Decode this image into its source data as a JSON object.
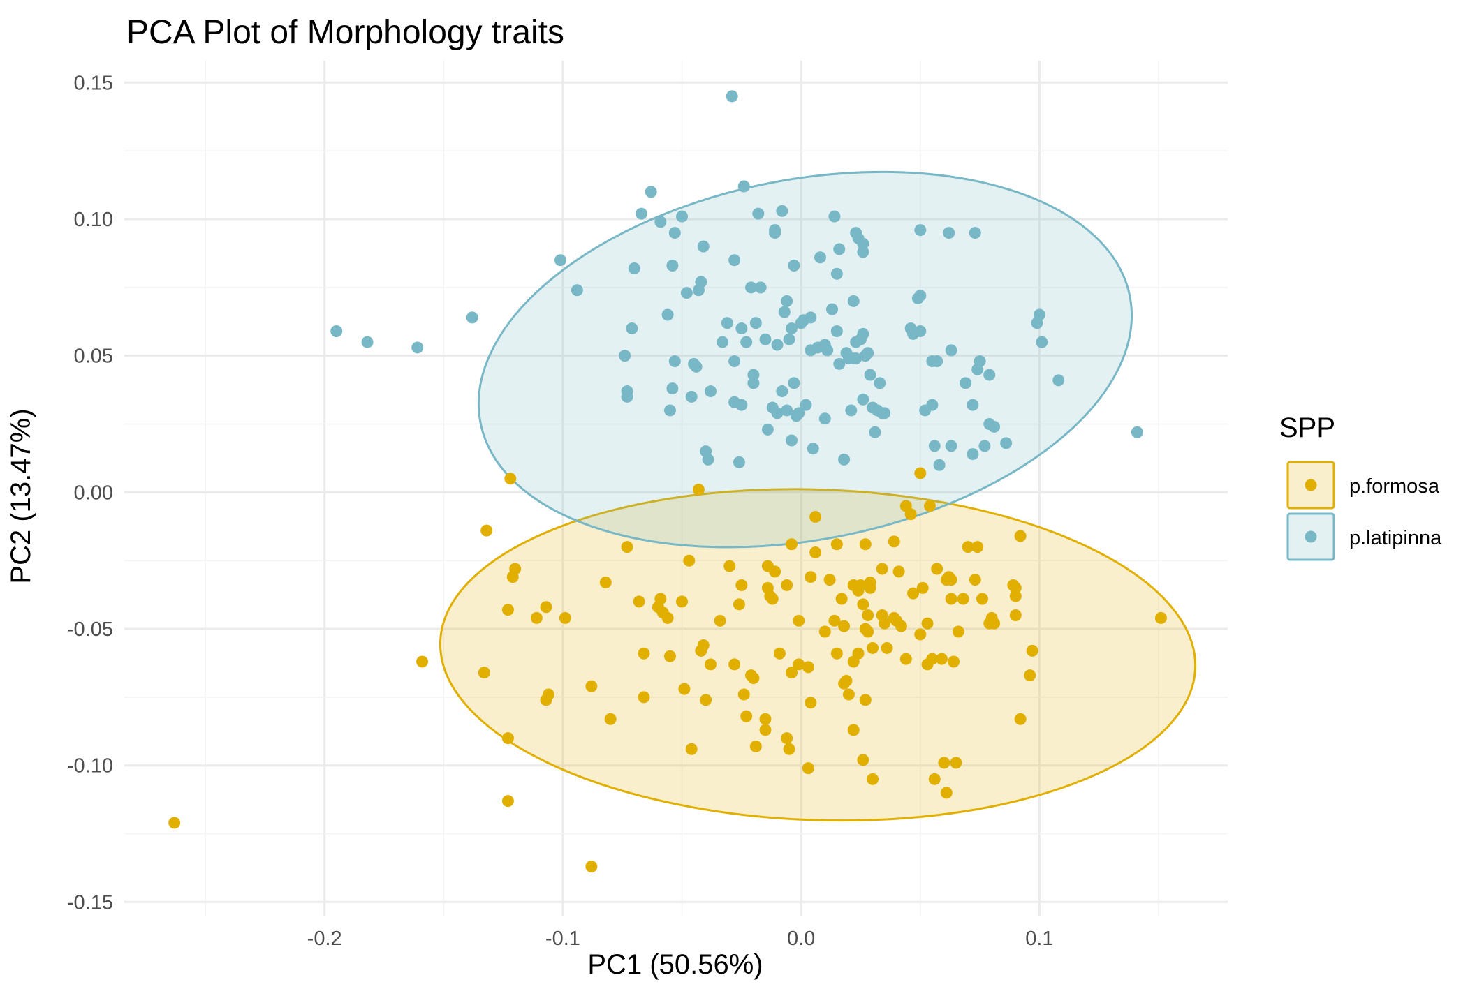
{
  "chart_data": {
    "type": "scatter",
    "title": "PCA Plot of Morphology traits",
    "xlabel": "PC1 (50.56%)",
    "ylabel": "PC2 (13.47%)",
    "xlim": [
      -0.284,
      0.179
    ],
    "ylim": [
      -0.155,
      0.158
    ],
    "x_ticks": [
      -0.2,
      -0.1,
      0.0,
      0.1
    ],
    "x_tick_labels": [
      "-0.2",
      "-0.1",
      "0.0",
      "0.1"
    ],
    "y_ticks": [
      -0.15,
      -0.1,
      -0.05,
      0.0,
      0.05,
      0.1,
      0.15
    ],
    "y_tick_labels": [
      "-0.15",
      "-0.10",
      "-0.05",
      "0.00",
      "0.05",
      "0.10",
      "0.15"
    ],
    "grid": true,
    "legend": {
      "title": "SPP",
      "position": "right"
    },
    "series": [
      {
        "name": "p.formosa",
        "color": "#E1AF00",
        "ellipse": {
          "center": [
            0.007,
            -0.0595
          ],
          "semi_x": 0.1585,
          "semi_y": 0.0605,
          "tilt_deg": 2
        },
        "points": [
          [
            -0.263,
            -0.121
          ],
          [
            -0.159,
            -0.062
          ],
          [
            -0.133,
            -0.066
          ],
          [
            -0.132,
            -0.014
          ],
          [
            -0.123,
            -0.043
          ],
          [
            -0.122,
            0.005
          ],
          [
            -0.121,
            -0.031
          ],
          [
            -0.12,
            -0.028
          ],
          [
            -0.123,
            -0.09
          ],
          [
            -0.123,
            -0.113
          ],
          [
            -0.111,
            -0.046
          ],
          [
            -0.107,
            -0.042
          ],
          [
            -0.107,
            -0.076
          ],
          [
            -0.106,
            -0.074
          ],
          [
            -0.099,
            -0.046
          ],
          [
            -0.088,
            -0.071
          ],
          [
            -0.088,
            -0.137
          ],
          [
            -0.082,
            -0.033
          ],
          [
            -0.08,
            -0.083
          ],
          [
            -0.073,
            -0.02
          ],
          [
            -0.068,
            -0.04
          ],
          [
            -0.066,
            -0.059
          ],
          [
            -0.066,
            -0.075
          ],
          [
            -0.06,
            -0.042
          ],
          [
            -0.059,
            -0.039
          ],
          [
            -0.058,
            -0.044
          ],
          [
            -0.056,
            -0.046
          ],
          [
            -0.055,
            -0.06
          ],
          [
            -0.05,
            -0.04
          ],
          [
            -0.049,
            -0.072
          ],
          [
            -0.047,
            -0.025
          ],
          [
            -0.046,
            -0.094
          ],
          [
            -0.043,
            0.001
          ],
          [
            -0.042,
            -0.058
          ],
          [
            -0.041,
            -0.056
          ],
          [
            -0.04,
            -0.076
          ],
          [
            -0.038,
            -0.063
          ],
          [
            -0.034,
            -0.047
          ],
          [
            -0.03,
            -0.027
          ],
          [
            -0.028,
            -0.063
          ],
          [
            -0.026,
            -0.041
          ],
          [
            -0.025,
            -0.034
          ],
          [
            -0.024,
            -0.074
          ],
          [
            -0.023,
            -0.082
          ],
          [
            -0.021,
            -0.067
          ],
          [
            -0.02,
            -0.068
          ],
          [
            -0.019,
            -0.093
          ],
          [
            -0.015,
            -0.083
          ],
          [
            -0.015,
            -0.087
          ],
          [
            -0.014,
            -0.027
          ],
          [
            -0.014,
            -0.035
          ],
          [
            -0.013,
            -0.038
          ],
          [
            -0.012,
            -0.039
          ],
          [
            -0.011,
            -0.029
          ],
          [
            -0.009,
            -0.059
          ],
          [
            -0.006,
            -0.034
          ],
          [
            -0.006,
            -0.09
          ],
          [
            -0.005,
            -0.094
          ],
          [
            -0.004,
            -0.019
          ],
          [
            -0.004,
            -0.066
          ],
          [
            -0.001,
            -0.047
          ],
          [
            -0.001,
            -0.063
          ],
          [
            0.003,
            -0.064
          ],
          [
            0.003,
            -0.101
          ],
          [
            0.004,
            -0.031
          ],
          [
            0.004,
            -0.077
          ],
          [
            0.006,
            -0.009
          ],
          [
            0.006,
            -0.022
          ],
          [
            0.01,
            -0.051
          ],
          [
            0.012,
            -0.032
          ],
          [
            0.014,
            -0.047
          ],
          [
            0.015,
            -0.019
          ],
          [
            0.015,
            -0.059
          ],
          [
            0.017,
            -0.039
          ],
          [
            0.018,
            -0.049
          ],
          [
            0.018,
            -0.07
          ],
          [
            0.019,
            -0.069
          ],
          [
            0.02,
            -0.074
          ],
          [
            0.022,
            -0.087
          ],
          [
            0.022,
            -0.062
          ],
          [
            0.022,
            -0.034
          ],
          [
            0.024,
            -0.036
          ],
          [
            0.024,
            -0.059
          ],
          [
            0.025,
            -0.034
          ],
          [
            0.026,
            -0.098
          ],
          [
            0.026,
            -0.041
          ],
          [
            0.027,
            -0.076
          ],
          [
            0.027,
            -0.05
          ],
          [
            0.027,
            -0.019
          ],
          [
            0.028,
            -0.045
          ],
          [
            0.028,
            -0.051
          ],
          [
            0.029,
            -0.033
          ],
          [
            0.029,
            -0.035
          ],
          [
            0.03,
            -0.057
          ],
          [
            0.03,
            -0.105
          ],
          [
            0.034,
            -0.028
          ],
          [
            0.034,
            -0.045
          ],
          [
            0.035,
            -0.048
          ],
          [
            0.036,
            -0.057
          ],
          [
            0.039,
            -0.018
          ],
          [
            0.039,
            -0.046
          ],
          [
            0.04,
            -0.047
          ],
          [
            0.041,
            -0.029
          ],
          [
            0.042,
            -0.049
          ],
          [
            0.044,
            -0.061
          ],
          [
            0.044,
            -0.005
          ],
          [
            0.046,
            -0.008
          ],
          [
            0.047,
            -0.037
          ],
          [
            0.05,
            0.007
          ],
          [
            0.05,
            -0.052
          ],
          [
            0.051,
            -0.035
          ],
          [
            0.053,
            -0.048
          ],
          [
            0.053,
            -0.063
          ],
          [
            0.054,
            -0.005
          ],
          [
            0.055,
            -0.061
          ],
          [
            0.056,
            -0.105
          ],
          [
            0.057,
            -0.028
          ],
          [
            0.059,
            -0.061
          ],
          [
            0.06,
            -0.099
          ],
          [
            0.061,
            -0.032
          ],
          [
            0.061,
            -0.11
          ],
          [
            0.062,
            -0.031
          ],
          [
            0.063,
            -0.032
          ],
          [
            0.063,
            -0.039
          ],
          [
            0.064,
            -0.062
          ],
          [
            0.065,
            -0.099
          ],
          [
            0.066,
            -0.051
          ],
          [
            0.068,
            -0.039
          ],
          [
            0.07,
            -0.02
          ],
          [
            0.073,
            -0.032
          ],
          [
            0.074,
            -0.02
          ],
          [
            0.076,
            -0.039
          ],
          [
            0.079,
            -0.048
          ],
          [
            0.08,
            -0.046
          ],
          [
            0.081,
            -0.048
          ],
          [
            0.089,
            -0.034
          ],
          [
            0.09,
            -0.035
          ],
          [
            0.09,
            -0.038
          ],
          [
            0.09,
            -0.045
          ],
          [
            0.092,
            -0.016
          ],
          [
            0.092,
            -0.083
          ],
          [
            0.096,
            -0.067
          ],
          [
            0.097,
            -0.058
          ],
          [
            0.151,
            -0.046
          ]
        ]
      },
      {
        "name": "p.latipinna",
        "color": "#78B7C5",
        "ellipse": {
          "center": [
            0.0017,
            0.0486
          ],
          "semi_x": 0.1388,
          "semi_y": 0.0659,
          "tilt_deg": -11
        },
        "points": [
          [
            -0.195,
            0.059
          ],
          [
            -0.182,
            0.055
          ],
          [
            -0.161,
            0.053
          ],
          [
            -0.138,
            0.064
          ],
          [
            -0.101,
            0.085
          ],
          [
            -0.094,
            0.074
          ],
          [
            -0.074,
            0.05
          ],
          [
            -0.073,
            0.037
          ],
          [
            -0.073,
            0.035
          ],
          [
            -0.071,
            0.06
          ],
          [
            -0.07,
            0.082
          ],
          [
            -0.067,
            0.102
          ],
          [
            -0.063,
            0.11
          ],
          [
            -0.059,
            0.099
          ],
          [
            -0.056,
            0.065
          ],
          [
            -0.055,
            0.03
          ],
          [
            -0.054,
            0.038
          ],
          [
            -0.054,
            0.083
          ],
          [
            -0.053,
            0.095
          ],
          [
            -0.053,
            0.048
          ],
          [
            -0.05,
            0.101
          ],
          [
            -0.048,
            0.073
          ],
          [
            -0.046,
            0.035
          ],
          [
            -0.045,
            0.047
          ],
          [
            -0.044,
            0.046
          ],
          [
            -0.043,
            0.074
          ],
          [
            -0.042,
            0.077
          ],
          [
            -0.041,
            0.09
          ],
          [
            -0.04,
            0.015
          ],
          [
            -0.039,
            0.012
          ],
          [
            -0.038,
            0.037
          ],
          [
            -0.033,
            0.055
          ],
          [
            -0.031,
            0.062
          ],
          [
            -0.029,
            0.145
          ],
          [
            -0.028,
            0.048
          ],
          [
            -0.028,
            0.085
          ],
          [
            -0.028,
            0.033
          ],
          [
            -0.026,
            0.011
          ],
          [
            -0.025,
            0.06
          ],
          [
            -0.025,
            0.032
          ],
          [
            -0.024,
            0.112
          ],
          [
            -0.023,
            0.055
          ],
          [
            -0.021,
            0.075
          ],
          [
            -0.02,
            0.043
          ],
          [
            -0.02,
            0.04
          ],
          [
            -0.019,
            0.062
          ],
          [
            -0.018,
            0.102
          ],
          [
            -0.017,
            0.075
          ],
          [
            -0.015,
            0.056
          ],
          [
            -0.014,
            0.023
          ],
          [
            -0.012,
            0.031
          ],
          [
            -0.011,
            0.095
          ],
          [
            -0.011,
            0.096
          ],
          [
            -0.01,
            0.029
          ],
          [
            -0.01,
            0.054
          ],
          [
            -0.008,
            0.103
          ],
          [
            -0.008,
            0.037
          ],
          [
            -0.007,
            0.066
          ],
          [
            -0.006,
            0.07
          ],
          [
            -0.006,
            0.03
          ],
          [
            -0.005,
            0.056
          ],
          [
            -0.004,
            0.019
          ],
          [
            -0.004,
            0.06
          ],
          [
            -0.003,
            0.083
          ],
          [
            -0.003,
            0.04
          ],
          [
            -0.002,
            0.028
          ],
          [
            -0.001,
            0.029
          ],
          [
            0.0,
            0.062
          ],
          [
            0.001,
            0.063
          ],
          [
            0.002,
            0.032
          ],
          [
            0.004,
            0.064
          ],
          [
            0.004,
            0.052
          ],
          [
            0.005,
            0.016
          ],
          [
            0.007,
            0.053
          ],
          [
            0.008,
            0.086
          ],
          [
            0.01,
            0.027
          ],
          [
            0.01,
            0.054
          ],
          [
            0.011,
            0.052
          ],
          [
            0.013,
            0.067
          ],
          [
            0.014,
            0.101
          ],
          [
            0.015,
            0.08
          ],
          [
            0.015,
            0.059
          ],
          [
            0.016,
            0.089
          ],
          [
            0.016,
            0.047
          ],
          [
            0.018,
            0.012
          ],
          [
            0.019,
            0.051
          ],
          [
            0.02,
            0.049
          ],
          [
            0.021,
            0.03
          ],
          [
            0.022,
            0.07
          ],
          [
            0.022,
            0.049
          ],
          [
            0.023,
            0.049
          ],
          [
            0.023,
            0.095
          ],
          [
            0.023,
            0.055
          ],
          [
            0.024,
            0.093
          ],
          [
            0.025,
            0.056
          ],
          [
            0.026,
            0.034
          ],
          [
            0.026,
            0.058
          ],
          [
            0.026,
            0.088
          ],
          [
            0.026,
            0.091
          ],
          [
            0.027,
            0.05
          ],
          [
            0.028,
            0.051
          ],
          [
            0.029,
            0.043
          ],
          [
            0.03,
            0.031
          ],
          [
            0.031,
            0.022
          ],
          [
            0.032,
            0.03
          ],
          [
            0.033,
            0.04
          ],
          [
            0.034,
            0.029
          ],
          [
            0.035,
            0.029
          ],
          [
            0.046,
            0.06
          ],
          [
            0.047,
            0.058
          ],
          [
            0.049,
            0.071
          ],
          [
            0.05,
            0.072
          ],
          [
            0.05,
            0.096
          ],
          [
            0.05,
            0.059
          ],
          [
            0.052,
            0.03
          ],
          [
            0.055,
            0.048
          ],
          [
            0.055,
            0.032
          ],
          [
            0.056,
            0.017
          ],
          [
            0.057,
            0.048
          ],
          [
            0.058,
            0.01
          ],
          [
            0.062,
            0.095
          ],
          [
            0.063,
            0.017
          ],
          [
            0.063,
            0.052
          ],
          [
            0.069,
            0.04
          ],
          [
            0.072,
            0.032
          ],
          [
            0.072,
            0.014
          ],
          [
            0.073,
            0.095
          ],
          [
            0.074,
            0.045
          ],
          [
            0.075,
            0.048
          ],
          [
            0.077,
            0.017
          ],
          [
            0.079,
            0.043
          ],
          [
            0.079,
            0.025
          ],
          [
            0.081,
            0.024
          ],
          [
            0.086,
            0.018
          ],
          [
            0.099,
            0.062
          ],
          [
            0.1,
            0.065
          ],
          [
            0.101,
            0.055
          ],
          [
            0.108,
            0.041
          ],
          [
            0.141,
            0.022
          ]
        ]
      }
    ]
  }
}
